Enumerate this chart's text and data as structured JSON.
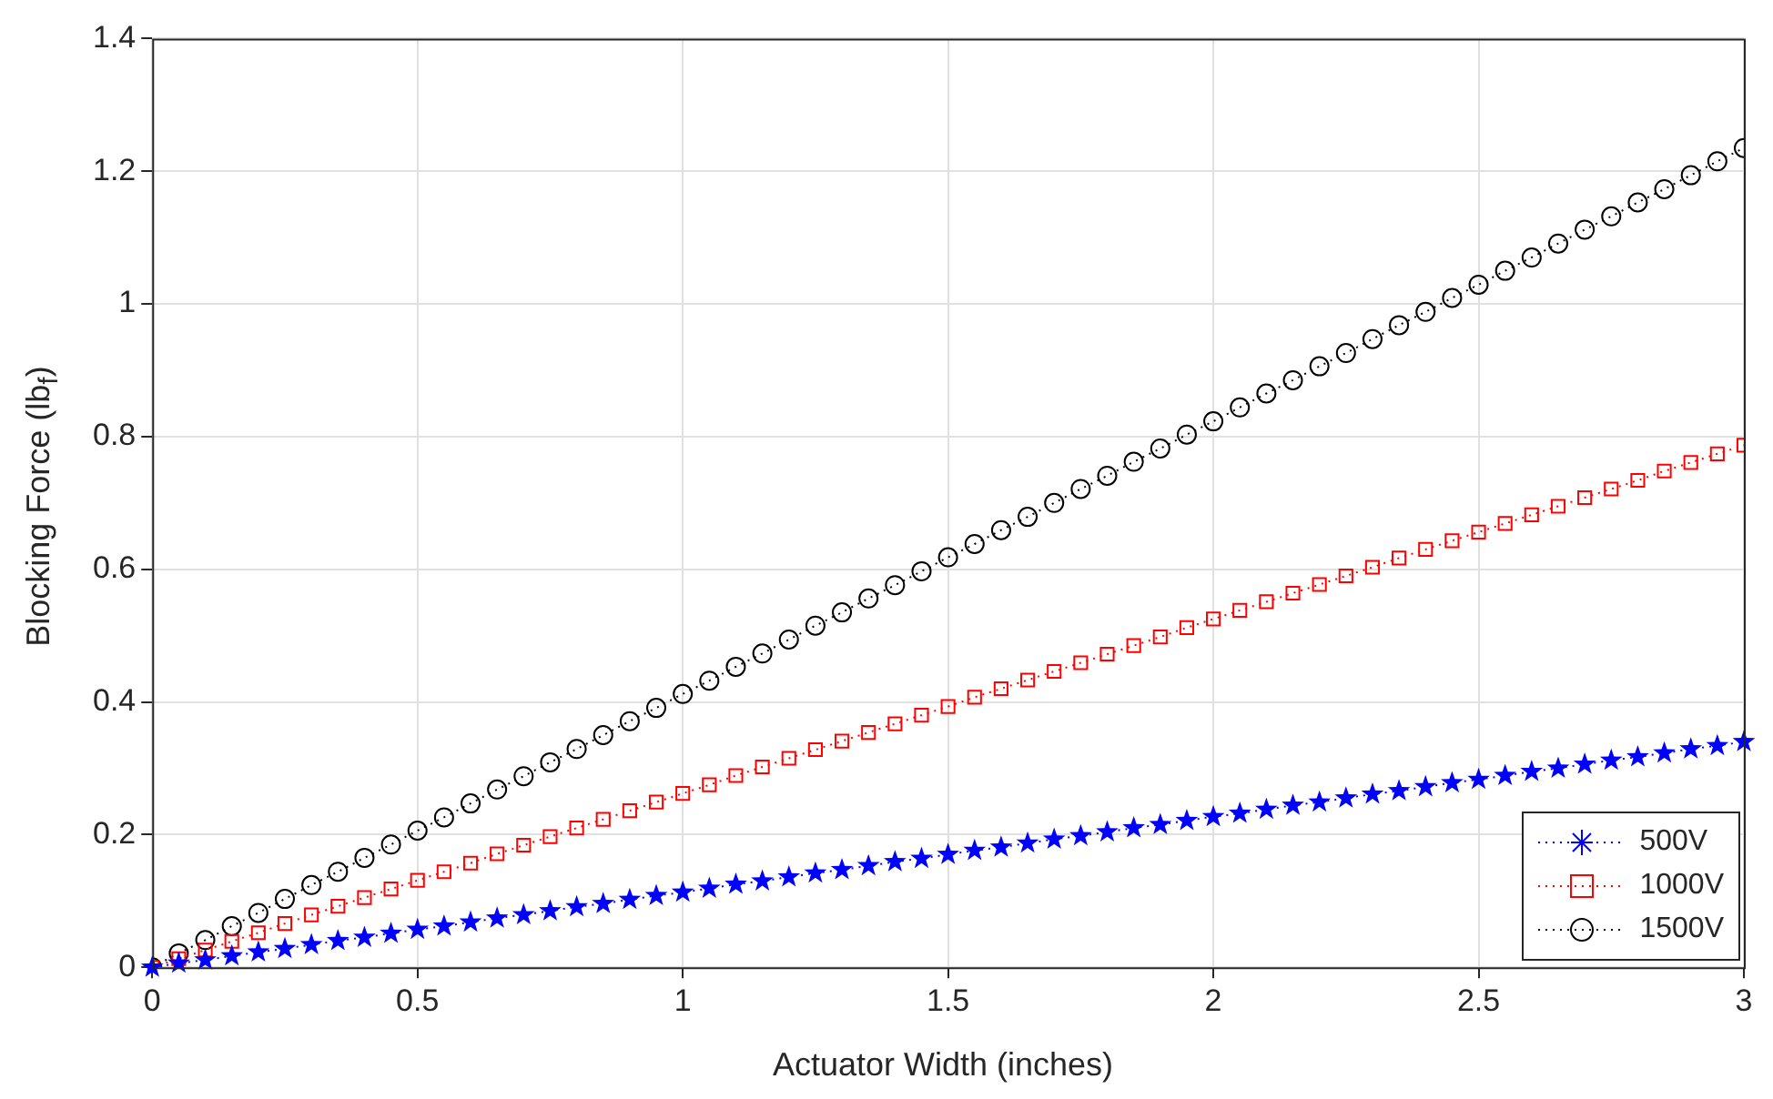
{
  "chart_data": {
    "type": "line",
    "xlabel": "Actuator Width (inches)",
    "ylabel": "Blocking Force (lb$_{f}$)",
    "x": [
      0,
      0.05,
      0.1,
      0.15,
      0.2,
      0.25,
      0.3,
      0.35,
      0.4,
      0.45,
      0.5,
      0.55,
      0.6,
      0.65,
      0.7,
      0.75,
      0.8,
      0.85,
      0.9,
      0.95,
      1,
      1.05,
      1.1,
      1.15,
      1.2,
      1.25,
      1.3,
      1.35,
      1.4,
      1.45,
      1.5,
      1.55,
      1.6,
      1.65,
      1.7,
      1.75,
      1.8,
      1.85,
      1.9,
      1.95,
      2,
      2.05,
      2.1,
      2.15,
      2.2,
      2.25,
      2.3,
      2.35,
      2.4,
      2.45,
      2.5,
      2.55,
      2.6,
      2.65,
      2.7,
      2.75,
      2.8,
      2.85,
      2.9,
      2.95,
      3
    ],
    "series": [
      {
        "name": "500V",
        "color": "#0000ff",
        "marker": "star",
        "line_style": "dotted",
        "values": [
          0,
          0.006,
          0.011,
          0.017,
          0.023,
          0.028,
          0.034,
          0.04,
          0.045,
          0.051,
          0.057,
          0.062,
          0.068,
          0.074,
          0.079,
          0.085,
          0.091,
          0.096,
          0.102,
          0.108,
          0.113,
          0.119,
          0.125,
          0.13,
          0.136,
          0.142,
          0.147,
          0.153,
          0.159,
          0.164,
          0.17,
          0.176,
          0.181,
          0.187,
          0.193,
          0.198,
          0.204,
          0.21,
          0.215,
          0.221,
          0.227,
          0.232,
          0.238,
          0.244,
          0.249,
          0.255,
          0.261,
          0.266,
          0.272,
          0.278,
          0.283,
          0.289,
          0.295,
          0.3,
          0.306,
          0.312,
          0.317,
          0.323,
          0.329,
          0.334,
          0.34
        ]
      },
      {
        "name": "1000V",
        "color": "#ff0000",
        "marker": "square",
        "line_style": "dotted",
        "values": [
          0,
          0.013,
          0.026,
          0.039,
          0.052,
          0.066,
          0.079,
          0.092,
          0.105,
          0.118,
          0.131,
          0.144,
          0.157,
          0.171,
          0.184,
          0.197,
          0.21,
          0.223,
          0.236,
          0.249,
          0.262,
          0.275,
          0.289,
          0.302,
          0.315,
          0.328,
          0.341,
          0.354,
          0.367,
          0.38,
          0.393,
          0.407,
          0.42,
          0.433,
          0.446,
          0.459,
          0.472,
          0.485,
          0.498,
          0.512,
          0.525,
          0.538,
          0.551,
          0.564,
          0.577,
          0.59,
          0.603,
          0.617,
          0.63,
          0.643,
          0.656,
          0.669,
          0.682,
          0.695,
          0.708,
          0.721,
          0.734,
          0.748,
          0.761,
          0.774,
          0.787
        ]
      },
      {
        "name": "1500V",
        "color": "#000000",
        "marker": "circle",
        "line_style": "dotted",
        "values": [
          0,
          0.021,
          0.041,
          0.062,
          0.082,
          0.103,
          0.124,
          0.144,
          0.165,
          0.185,
          0.206,
          0.226,
          0.247,
          0.268,
          0.288,
          0.309,
          0.329,
          0.35,
          0.371,
          0.391,
          0.412,
          0.432,
          0.453,
          0.473,
          0.494,
          0.515,
          0.535,
          0.556,
          0.576,
          0.597,
          0.618,
          0.638,
          0.659,
          0.679,
          0.7,
          0.721,
          0.741,
          0.762,
          0.782,
          0.803,
          0.823,
          0.844,
          0.865,
          0.885,
          0.906,
          0.926,
          0.947,
          0.968,
          0.988,
          1.009,
          1.029,
          1.05,
          1.07,
          1.091,
          1.112,
          1.132,
          1.153,
          1.173,
          1.194,
          1.215,
          1.235
        ]
      }
    ],
    "xlim": [
      0,
      3
    ],
    "xticks": [
      0,
      0.5,
      1,
      1.5,
      2,
      2.5,
      3
    ],
    "ylim": [
      0,
      1.4
    ],
    "yticks": [
      0,
      0.2,
      0.4,
      0.6,
      0.8,
      1,
      1.2,
      1.4
    ],
    "grid": true,
    "legend": "bottom right"
  }
}
